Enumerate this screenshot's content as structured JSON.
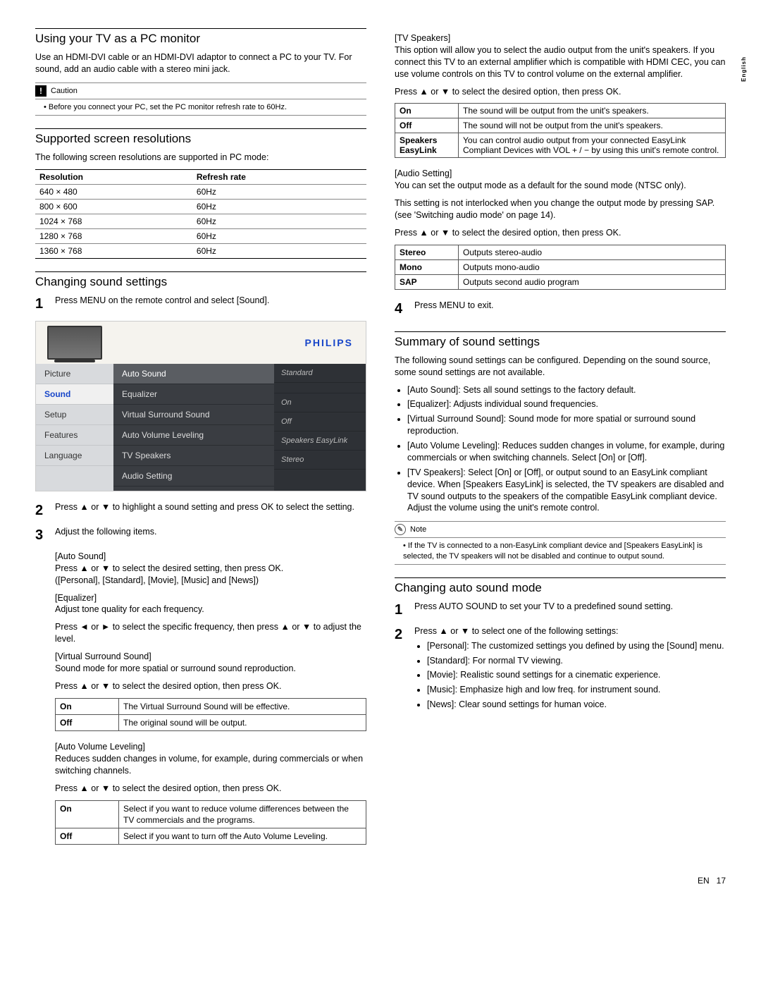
{
  "side_label": "English",
  "footer_lang": "EN",
  "footer_page": "17",
  "left": {
    "h_pc": "Using your TV as a PC monitor",
    "p_pc": "Use an HDMI-DVI cable or an HDMI-DVI adaptor to connect a PC to your TV. For sound, add an audio cable with a stereo mini jack.",
    "caution_label": "Caution",
    "caution_text": "Before you connect your PC, set the PC monitor refresh rate to 60Hz.",
    "h_res": "Supported screen resolutions",
    "p_res": "The following screen resolutions are supported in PC mode:",
    "res_cols": [
      "Resolution",
      "Refresh rate"
    ],
    "res_rows": [
      [
        "640 × 480",
        "60Hz"
      ],
      [
        "800 × 600",
        "60Hz"
      ],
      [
        "1024 × 768",
        "60Hz"
      ],
      [
        "1280 × 768",
        "60Hz"
      ],
      [
        "1360 × 768",
        "60Hz"
      ]
    ],
    "h_sound": "Changing sound settings",
    "step1": "Press MENU on the remote control and select [Sound].",
    "tv": {
      "brand": "PHILIPS",
      "left_items": [
        "Picture",
        "Sound",
        "Setup",
        "Features",
        "Language"
      ],
      "left_selected": 1,
      "mid_items": [
        "Auto Sound",
        "Equalizer",
        "Virtual Surround Sound",
        "Auto Volume Leveling",
        "TV Speakers",
        "Audio Setting"
      ],
      "mid_selected": 0,
      "right_items": [
        "Standard",
        "",
        "On",
        "Off",
        "Speakers EasyLink",
        "Stereo"
      ]
    },
    "step2": "Press ▲ or ▼ to highlight a sound setting and press OK to select the setting.",
    "step3": "Adjust the following items.",
    "auto_sound_label": "[Auto Sound]",
    "auto_sound_p1": "Press ▲ or ▼ to select the desired setting, then press OK.",
    "auto_sound_p2": "([Personal], [Standard], [Movie], [Music] and [News])",
    "eq_label": "[Equalizer]",
    "eq_p1": "Adjust tone quality for each frequency.",
    "eq_p2": "Press ◄ or ► to select the specific frequency, then press ▲ or ▼ to adjust the level.",
    "vss_label": "[Virtual Surround Sound]",
    "vss_p1": "Sound mode for more spatial or surround sound reproduction.",
    "vss_p2": "Press ▲ or ▼ to select the desired option, then press OK.",
    "vss_rows": [
      [
        "On",
        "The Virtual Surround Sound will be effective."
      ],
      [
        "Off",
        "The original sound will be output."
      ]
    ],
    "avl_label": "[Auto Volume Leveling]",
    "avl_p1": "Reduces sudden changes in volume, for example, during commercials or when switching channels.",
    "avl_p2": "Press ▲ or ▼ to select the desired option, then press OK.",
    "avl_rows": [
      [
        "On",
        "Select if you want to reduce volume differences between the TV commercials and the programs."
      ],
      [
        "Off",
        "Select if you want to turn off the Auto Volume Leveling."
      ]
    ]
  },
  "right": {
    "tvs_label": "[TV Speakers]",
    "tvs_p1": "This option will allow you to select the audio output from the unit's speakers. If you connect this TV to an external amplifier which is compatible with HDMI CEC, you can use volume controls on this TV to control volume on the external amplifier.",
    "tvs_p2": "Press ▲ or ▼ to select the desired option, then press OK.",
    "tvs_rows": [
      [
        "On",
        "The sound will be output from the unit's speakers."
      ],
      [
        "Off",
        "The sound will not be output from the unit's speakers."
      ],
      [
        "Speakers EasyLink",
        "You can control audio output from your connected EasyLink Compliant Devices with VOL + / − by using this unit's remote control."
      ]
    ],
    "aud_label": "[Audio Setting]",
    "aud_p1": "You can set the output mode as a default for the sound mode (NTSC only).",
    "aud_p2": "This setting is not interlocked when you change the output mode by pressing SAP. (see 'Switching audio mode' on page 14).",
    "aud_p3": "Press ▲ or ▼ to select the desired option, then press OK.",
    "aud_rows": [
      [
        "Stereo",
        "Outputs stereo-audio"
      ],
      [
        "Mono",
        "Outputs mono-audio"
      ],
      [
        "SAP",
        "Outputs second audio program"
      ]
    ],
    "step4": "Press MENU to exit.",
    "h_summary": "Summary of sound settings",
    "summary_p": "The following sound settings can be configured. Depending on the sound source, some sound settings are not available.",
    "summary_items": [
      "[Auto Sound]: Sets all sound settings to the factory default.",
      "[Equalizer]: Adjusts individual sound frequencies.",
      "[Virtual Surround Sound]: Sound mode for more spatial or surround sound reproduction.",
      "[Auto Volume Leveling]: Reduces sudden changes in volume, for example, during commercials or when switching channels. Select [On] or [Off].",
      "[TV Speakers]: Select [On] or [Off], or output sound to an EasyLink compliant device. When [Speakers EasyLink] is selected, the TV speakers are disabled and TV sound outputs to the speakers of the compatible EasyLink compliant device. Adjust the volume using the unit's remote control."
    ],
    "note_label": "Note",
    "note_text": "If the TV is connected to a non-EasyLink compliant device and [Speakers EasyLink] is selected, the TV speakers will not be disabled and continue to output sound.",
    "h_auto": "Changing auto sound mode",
    "auto_step1": "Press AUTO SOUND to set your TV to a predefined sound setting.",
    "auto_step2": "Press ▲ or ▼ to select one of the following settings:",
    "auto_items": [
      "[Personal]: The customized settings you defined by using the [Sound] menu.",
      "[Standard]: For normal TV viewing.",
      "[Movie]: Realistic sound settings for a cinematic experience.",
      "[Music]: Emphasize high and low freq. for instrument sound.",
      "[News]: Clear sound settings for human voice."
    ]
  }
}
